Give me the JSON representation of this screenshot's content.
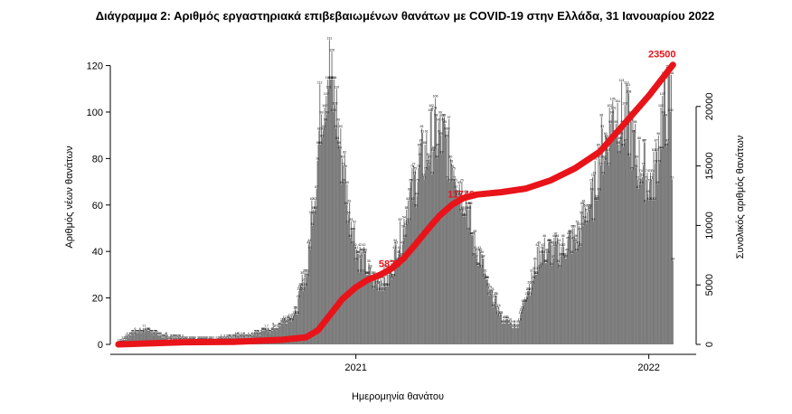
{
  "chart_data": {
    "type": "bar",
    "title": "Διάγραμμα 2: Αριθμός εργαστηριακά επιβεβαιωμένων θανάτων με COVID-19 στην Ελλάδα, 31 Ιανουαρίου 2022",
    "xlabel": "Ημερομηνία θανάτου",
    "ylabel": "Αριθμός νέων θανάτων",
    "y2label": "Συνολικός αριθμός θανάτων",
    "x_start": "2020-03-11",
    "x_end": "2022-01-31",
    "xlim": [
      "2020-03-01",
      "2022-03-01"
    ],
    "ylim": [
      0,
      128
    ],
    "y2lim": [
      0,
      25000
    ],
    "y_ticks": [
      "0",
      "20",
      "40",
      "60",
      "80",
      "100",
      "120"
    ],
    "y2_ticks": [
      "0",
      "5000",
      "10000",
      "15000",
      "20000"
    ],
    "x_ticks": [
      {
        "date": "2021-01-01",
        "label": "2021"
      },
      {
        "date": "2022-01-01",
        "label": "2022"
      }
    ],
    "series": [
      {
        "name": "Αριθμός νέων θανάτων",
        "kind": "bar",
        "color": "#7a7a7a",
        "daily_values_estimate": "smooth curve through the keypoints below, one bar per day from x_start to x_end",
        "keypoints": [
          [
            "2020-03-11",
            0
          ],
          [
            "2020-04-01",
            5
          ],
          [
            "2020-04-15",
            6
          ],
          [
            "2020-05-15",
            2
          ],
          [
            "2020-07-01",
            1
          ],
          [
            "2020-08-15",
            3
          ],
          [
            "2020-09-15",
            6
          ],
          [
            "2020-10-15",
            12
          ],
          [
            "2020-10-31",
            30
          ],
          [
            "2020-11-10",
            65
          ],
          [
            "2020-11-20",
            105
          ],
          [
            "2020-11-28",
            118
          ],
          [
            "2020-12-05",
            105
          ],
          [
            "2020-12-15",
            80
          ],
          [
            "2020-12-25",
            55
          ],
          [
            "2021-01-05",
            38
          ],
          [
            "2021-01-25",
            27
          ],
          [
            "2021-02-10",
            28
          ],
          [
            "2021-02-25",
            45
          ],
          [
            "2021-03-10",
            65
          ],
          [
            "2021-03-25",
            80
          ],
          [
            "2021-04-10",
            90
          ],
          [
            "2021-04-20",
            88
          ],
          [
            "2021-05-01",
            80
          ],
          [
            "2021-05-15",
            65
          ],
          [
            "2021-06-01",
            40
          ],
          [
            "2021-06-20",
            20
          ],
          [
            "2021-07-05",
            10
          ],
          [
            "2021-07-20",
            8
          ],
          [
            "2021-08-05",
            25
          ],
          [
            "2021-08-20",
            40
          ],
          [
            "2021-09-10",
            40
          ],
          [
            "2021-10-01",
            45
          ],
          [
            "2021-10-20",
            60
          ],
          [
            "2021-11-05",
            85
          ],
          [
            "2021-11-20",
            100
          ],
          [
            "2021-12-05",
            95
          ],
          [
            "2021-12-20",
            78
          ],
          [
            "2022-01-05",
            70
          ],
          [
            "2022-01-20",
            100
          ],
          [
            "2022-01-29",
            105
          ],
          [
            "2022-01-31",
            40
          ]
        ]
      },
      {
        "name": "Συνολικός αριθμός θανάτων",
        "kind": "line",
        "axis": "right",
        "color": "#e8141a",
        "points": [
          [
            "2020-03-11",
            0
          ],
          [
            "2020-06-01",
            180
          ],
          [
            "2020-08-01",
            210
          ],
          [
            "2020-10-01",
            390
          ],
          [
            "2020-10-31",
            600
          ],
          [
            "2020-11-15",
            1200
          ],
          [
            "2020-11-30",
            2500
          ],
          [
            "2020-12-15",
            3800
          ],
          [
            "2021-01-01",
            4800
          ],
          [
            "2021-01-15",
            5400
          ],
          [
            "2021-02-01",
            5876
          ],
          [
            "2021-02-15",
            6400
          ],
          [
            "2021-03-01",
            7200
          ],
          [
            "2021-03-15",
            8300
          ],
          [
            "2021-04-01",
            9700
          ],
          [
            "2021-04-15",
            10800
          ],
          [
            "2021-05-01",
            11749
          ],
          [
            "2021-05-15",
            12300
          ],
          [
            "2021-06-01",
            12600
          ],
          [
            "2021-07-01",
            12800
          ],
          [
            "2021-08-01",
            13100
          ],
          [
            "2021-09-01",
            13800
          ],
          [
            "2021-10-01",
            14800
          ],
          [
            "2021-11-01",
            16200
          ],
          [
            "2021-12-01",
            18500
          ],
          [
            "2022-01-01",
            20900
          ],
          [
            "2022-01-31",
            23500
          ]
        ]
      }
    ],
    "annotations": [
      {
        "date": "2021-02-01",
        "value": "5876"
      },
      {
        "date": "2021-05-01",
        "value": "11749"
      },
      {
        "date": "2022-01-31",
        "value": "23500"
      }
    ]
  }
}
